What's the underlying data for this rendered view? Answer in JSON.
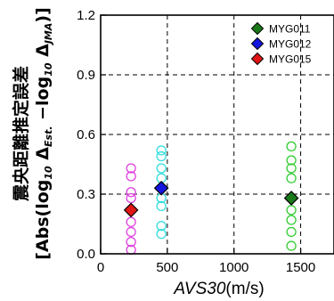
{
  "chart_data": {
    "type": "scatter",
    "title": "",
    "xlabel": {
      "italic": "AVS30",
      "unit": "(m/s)"
    },
    "ylabel": {
      "line1": "震央距離推定誤差",
      "line2_prefix": "[Abs(log",
      "line2_sub1": "10",
      "line2_delta1": " Δ",
      "line2_sub2": "Est.",
      "line2_mid": " −log",
      "line2_sub3": "10",
      "line2_delta2": " Δ",
      "line2_sub4": "JMA",
      "line2_suffix": ")]"
    },
    "xlim": [
      0,
      1750
    ],
    "ylim": [
      0.0,
      1.2
    ],
    "x_ticks": [
      0,
      500,
      1000,
      1500
    ],
    "x_tick_labels": [
      "0",
      "500",
      "1000",
      "1500"
    ],
    "y_ticks": [
      0.0,
      0.3,
      0.6,
      0.9,
      1.2
    ],
    "y_tick_labels": [
      "0.0",
      "0.3",
      "0.6",
      "0.9",
      "1.2"
    ],
    "grid": "dashed",
    "legend_position": "top-right",
    "series": [
      {
        "name": "MYG011",
        "color": "#1a7a1a",
        "marker": "diamond",
        "mean": {
          "x": 1430,
          "y": 0.28
        },
        "circle_color": "#33cc33",
        "circles": [
          {
            "x": 1430,
            "y": 0.54
          },
          {
            "x": 1430,
            "y": 0.47
          },
          {
            "x": 1430,
            "y": 0.43
          },
          {
            "x": 1430,
            "y": 0.38
          },
          {
            "x": 1430,
            "y": 0.28
          },
          {
            "x": 1430,
            "y": 0.22
          },
          {
            "x": 1430,
            "y": 0.17
          },
          {
            "x": 1430,
            "y": 0.11
          },
          {
            "x": 1430,
            "y": 0.04
          }
        ]
      },
      {
        "name": "MYG012",
        "color": "#1515e0",
        "marker": "diamond",
        "mean": {
          "x": 455,
          "y": 0.33
        },
        "circle_color": "#33dddd",
        "circles": [
          {
            "x": 455,
            "y": 0.52
          },
          {
            "x": 455,
            "y": 0.49
          },
          {
            "x": 455,
            "y": 0.43
          },
          {
            "x": 455,
            "y": 0.38
          },
          {
            "x": 455,
            "y": 0.33
          },
          {
            "x": 455,
            "y": 0.28
          },
          {
            "x": 455,
            "y": 0.24
          },
          {
            "x": 455,
            "y": 0.14
          },
          {
            "x": 455,
            "y": 0.1
          }
        ]
      },
      {
        "name": "MYG015",
        "color": "#e01515",
        "marker": "diamond",
        "mean": {
          "x": 228,
          "y": 0.22
        },
        "circle_color": "#e040e0",
        "circles": [
          {
            "x": 228,
            "y": 0.43
          },
          {
            "x": 228,
            "y": 0.39
          },
          {
            "x": 228,
            "y": 0.31
          },
          {
            "x": 228,
            "y": 0.28
          },
          {
            "x": 228,
            "y": 0.22
          },
          {
            "x": 228,
            "y": 0.16
          },
          {
            "x": 228,
            "y": 0.11
          },
          {
            "x": 228,
            "y": 0.06
          },
          {
            "x": 228,
            "y": 0.02
          }
        ]
      }
    ]
  }
}
